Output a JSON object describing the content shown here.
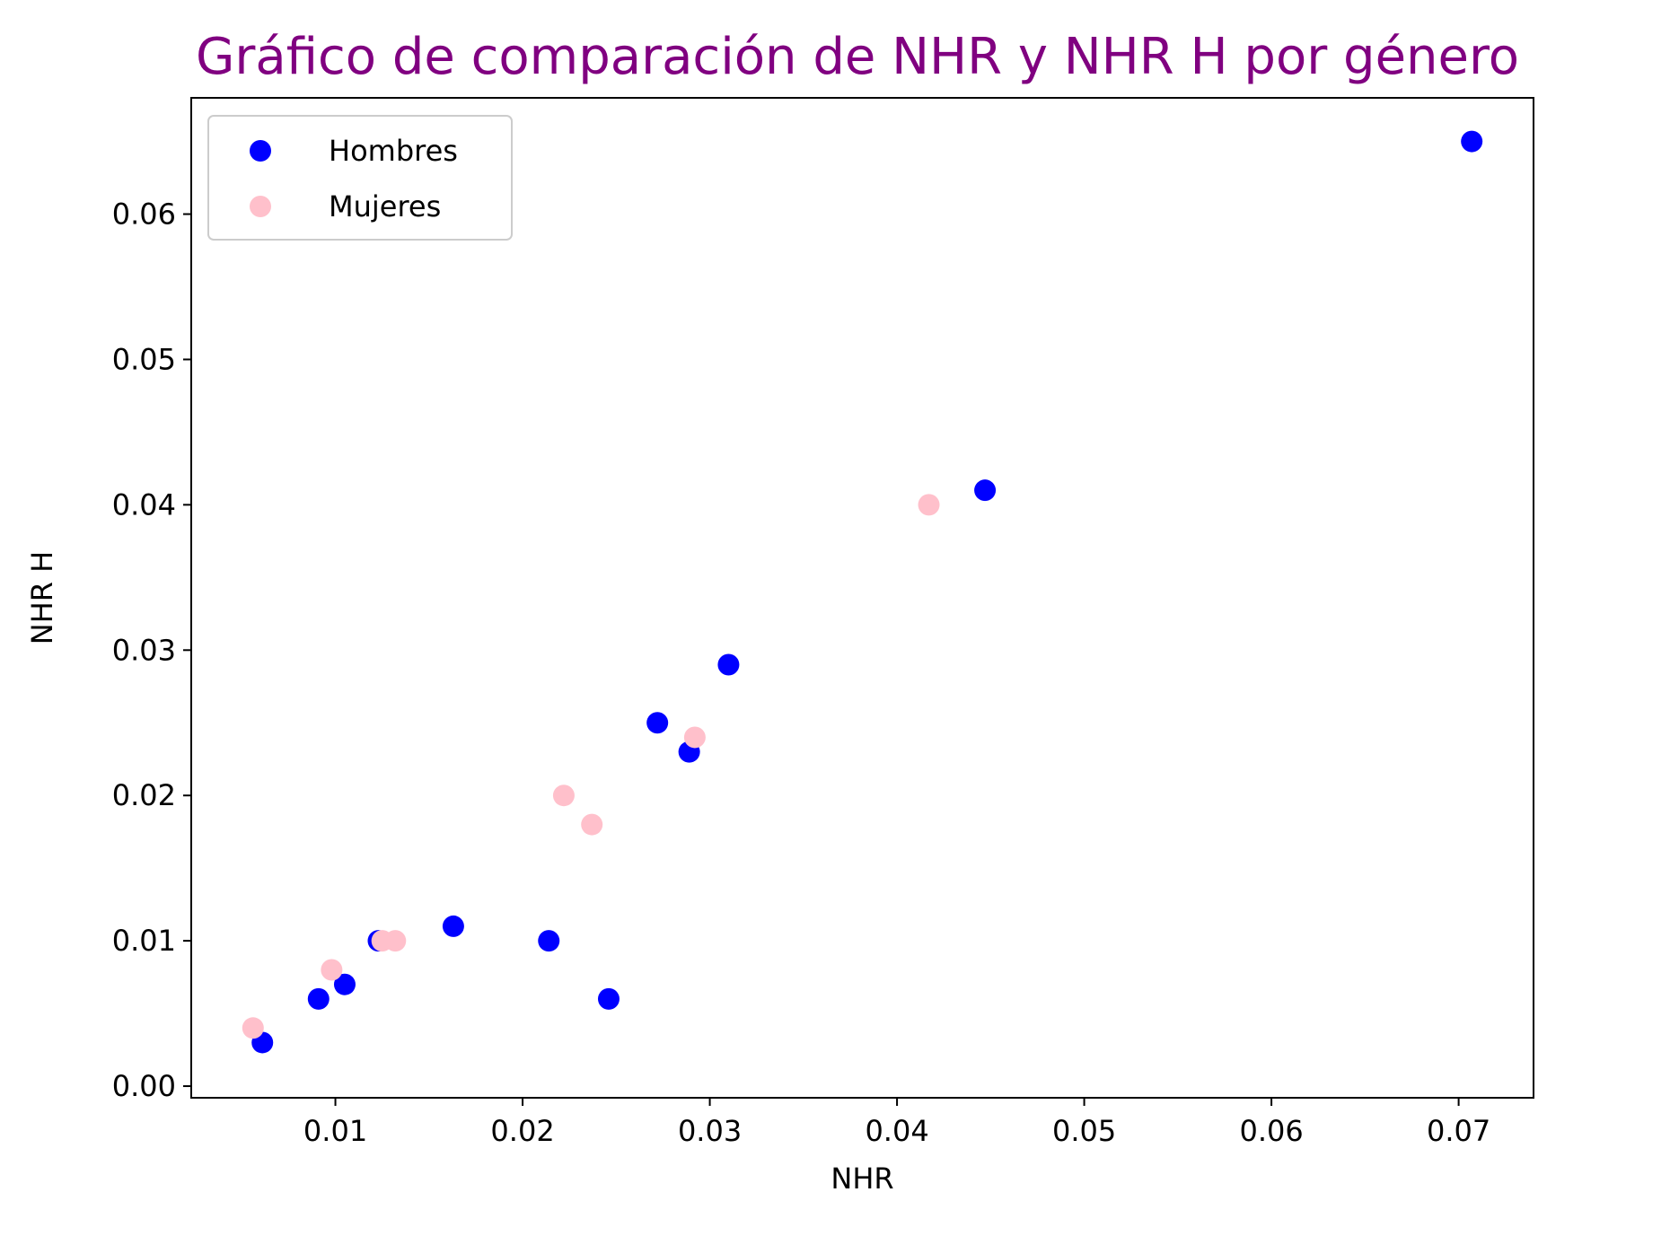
{
  "chart_data": {
    "type": "scatter",
    "title": "Gráfico de comparación de NHR y NHR H por género",
    "title_color": "#800080",
    "xlabel": "NHR",
    "ylabel": "NHR H",
    "xlim": [
      0.0023,
      0.074
    ],
    "ylim": [
      -0.0008,
      0.068
    ],
    "x_ticks": [
      0.01,
      0.02,
      0.03,
      0.04,
      0.05,
      0.06,
      0.07
    ],
    "x_tick_labels": [
      "0.01",
      "0.02",
      "0.03",
      "0.04",
      "0.05",
      "0.06",
      "0.07"
    ],
    "y_ticks": [
      0.0,
      0.01,
      0.02,
      0.03,
      0.04,
      0.05,
      0.06
    ],
    "y_tick_labels": [
      "0.00",
      "0.01",
      "0.02",
      "0.03",
      "0.04",
      "0.05",
      "0.06"
    ],
    "grid": false,
    "legend_position": "top-left",
    "series": [
      {
        "name": "Hombres",
        "color": "#0000ff",
        "points": [
          {
            "x": 0.0061,
            "y": 0.003
          },
          {
            "x": 0.0091,
            "y": 0.006
          },
          {
            "x": 0.0105,
            "y": 0.007
          },
          {
            "x": 0.0123,
            "y": 0.01
          },
          {
            "x": 0.0163,
            "y": 0.011
          },
          {
            "x": 0.0214,
            "y": 0.01
          },
          {
            "x": 0.0246,
            "y": 0.006
          },
          {
            "x": 0.0272,
            "y": 0.025
          },
          {
            "x": 0.0289,
            "y": 0.023
          },
          {
            "x": 0.031,
            "y": 0.029
          },
          {
            "x": 0.0447,
            "y": 0.041
          },
          {
            "x": 0.0707,
            "y": 0.065
          }
        ]
      },
      {
        "name": "Mujeres",
        "color": "#ffc0cb",
        "points": [
          {
            "x": 0.0056,
            "y": 0.004
          },
          {
            "x": 0.0098,
            "y": 0.008
          },
          {
            "x": 0.0125,
            "y": 0.01
          },
          {
            "x": 0.0132,
            "y": 0.01
          },
          {
            "x": 0.0222,
            "y": 0.02
          },
          {
            "x": 0.0237,
            "y": 0.018
          },
          {
            "x": 0.0292,
            "y": 0.024
          },
          {
            "x": 0.0417,
            "y": 0.04
          }
        ]
      }
    ]
  }
}
